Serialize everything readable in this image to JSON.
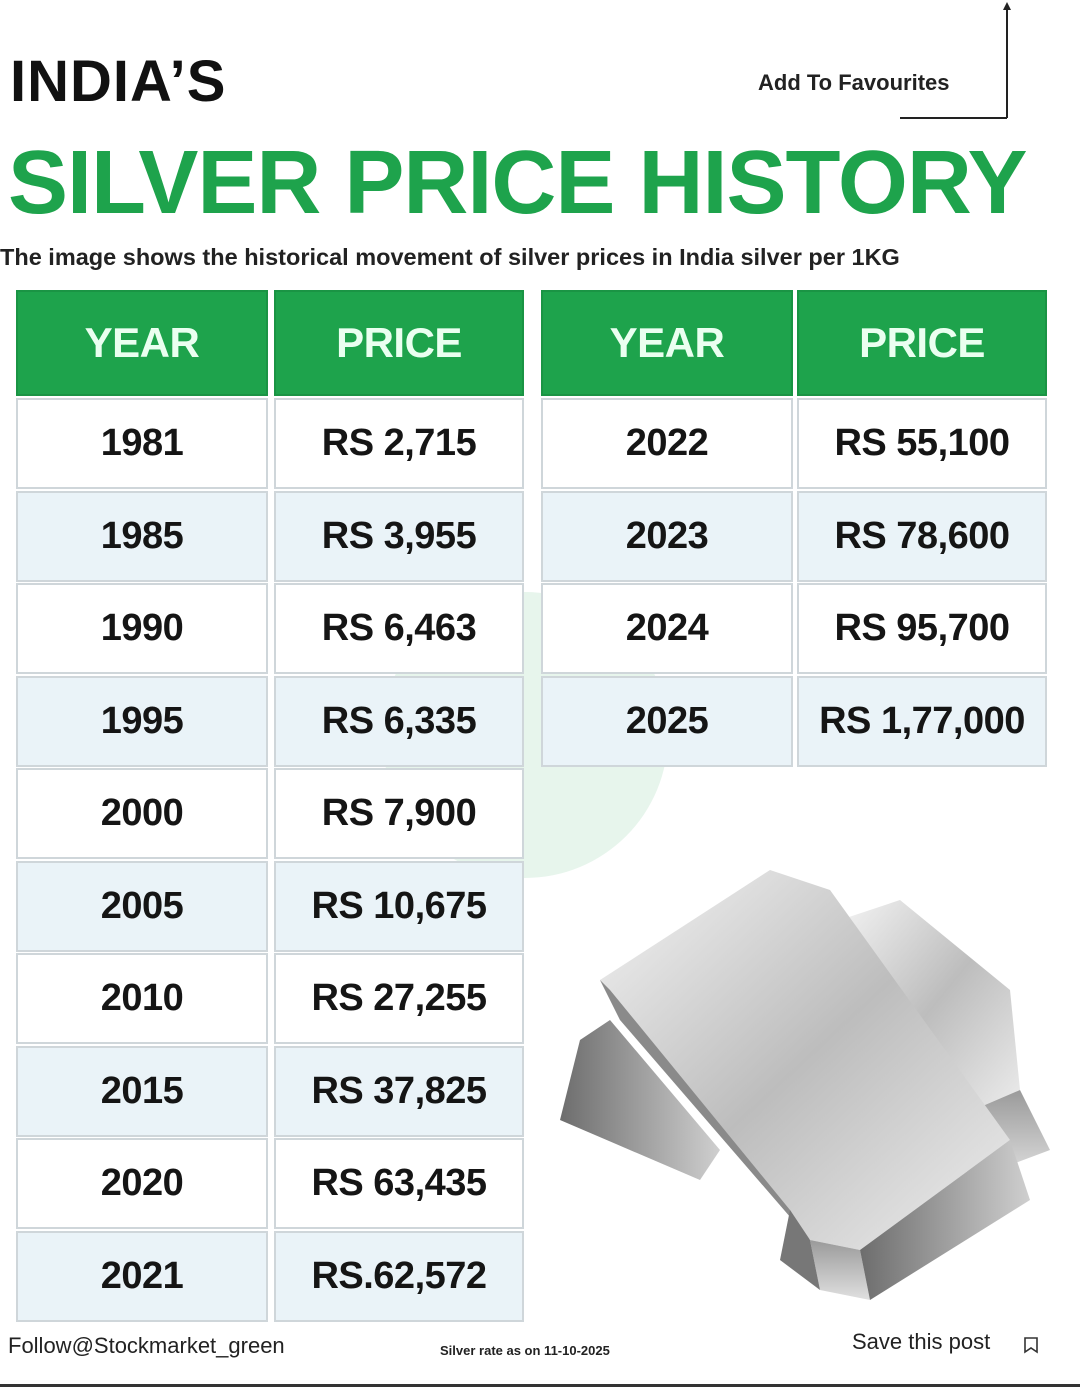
{
  "header": {
    "title_line1": "INDIA’S",
    "title_line2": "SILVER PRICE HISTORY",
    "subtitle": "The image shows the historical movement of silver prices in India silver per 1KG",
    "add_to_favourites": "Add To Favourites"
  },
  "tables": [
    {
      "columns": [
        "YEAR",
        "PRICE"
      ],
      "rows": [
        [
          "1981",
          "RS 2,715"
        ],
        [
          "1985",
          "RS 3,955"
        ],
        [
          "1990",
          "RS 6,463"
        ],
        [
          "1995",
          "RS 6,335"
        ],
        [
          "2000",
          "RS 7,900"
        ],
        [
          "2005",
          "RS 10,675"
        ],
        [
          "2010",
          "RS 27,255"
        ],
        [
          "2015",
          "RS 37,825"
        ],
        [
          "2020",
          "RS 63,435"
        ],
        [
          "2021",
          "RS.62,572"
        ]
      ]
    },
    {
      "columns": [
        "YEAR",
        "PRICE"
      ],
      "rows": [
        [
          "2022",
          "RS 55,100"
        ],
        [
          "2023",
          "RS 78,600"
        ],
        [
          "2024",
          "RS 95,700"
        ],
        [
          "2025",
          "RS 1,77,000"
        ]
      ]
    }
  ],
  "footer": {
    "follow": "Follow@Stockmarket_green",
    "rate_date": "Silver rate as on 11-10-2025",
    "save": "Save this post"
  }
}
